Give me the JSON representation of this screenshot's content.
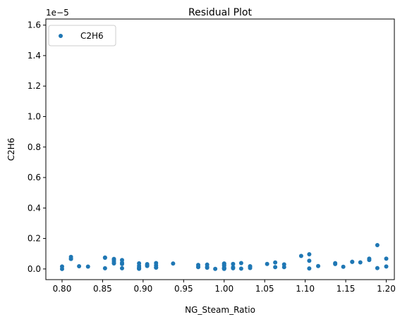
{
  "chart_data": {
    "type": "scatter",
    "title": "Residual Plot",
    "xlabel": "NG_Steam_Ratio",
    "ylabel": "C2H6",
    "y_offset_label": "1e−5",
    "xlim": [
      0.78,
      1.21
    ],
    "ylim": [
      -7e-07,
      1.64e-05
    ],
    "x_ticks": [
      0.8,
      0.85,
      0.9,
      0.95,
      1.0,
      1.05,
      1.1,
      1.15,
      1.2
    ],
    "x_tick_labels": [
      "0.80",
      "0.85",
      "0.90",
      "0.95",
      "1.00",
      "1.05",
      "1.10",
      "1.15",
      "1.20"
    ],
    "y_ticks": [
      0,
      2e-06,
      4e-06,
      6e-06,
      8e-06,
      1e-05,
      1.2e-05,
      1.4e-05,
      1.6e-05
    ],
    "y_tick_labels": [
      "0.0",
      "0.2",
      "0.4",
      "0.6",
      "0.8",
      "1.0",
      "1.2",
      "1.4",
      "1.6"
    ],
    "grid": false,
    "legend_position": "top-left",
    "series": [
      {
        "name": "C2H6",
        "color": "#1f77b4",
        "marker": "circle",
        "x": [
          0.8,
          0.8,
          0.811,
          0.811,
          0.811,
          0.821,
          0.832,
          0.853,
          0.853,
          0.853,
          0.864,
          0.864,
          0.864,
          0.864,
          0.864,
          0.874,
          0.874,
          0.874,
          0.874,
          0.895,
          0.895,
          0.895,
          0.895,
          0.895,
          0.895,
          0.905,
          0.905,
          0.905,
          0.916,
          0.916,
          0.916,
          0.916,
          0.937,
          0.968,
          0.968,
          0.968,
          0.979,
          0.979,
          0.979,
          0.989,
          1.0,
          1.0,
          1.0,
          1.0,
          1.0,
          1.0,
          1.0,
          1.0,
          1.0,
          1.011,
          1.011,
          1.011,
          1.021,
          1.021,
          1.032,
          1.032,
          1.032,
          1.053,
          1.063,
          1.063,
          1.074,
          1.074,
          1.095,
          1.105,
          1.105,
          1.105,
          1.116,
          1.137,
          1.137,
          1.147,
          1.158,
          1.158,
          1.168,
          1.179,
          1.179,
          1.189,
          1.189,
          1.2,
          1.2
        ],
        "y": [
          1.63e-07,
          0.0,
          7.9e-07,
          6.65e-07,
          6.6e-07,
          1.8e-07,
          1.53e-07,
          7.5e-07,
          7.35e-07,
          4.7e-08,
          6.6e-07,
          6.2e-07,
          5.15e-07,
          4e-07,
          3.65e-07,
          5.8e-07,
          4.05e-07,
          3.25e-07,
          4.5e-08,
          3.7e-07,
          2.05e-07,
          1.1e-07,
          3.5e-08,
          8e-09,
          3.5e-08,
          3.15e-07,
          2.4e-07,
          1.95e-07,
          3.85e-07,
          2.35e-07,
          1.05e-07,
          8.5e-08,
          3.55e-07,
          2.65e-07,
          1.35e-07,
          1.2e-07,
          2.85e-07,
          1.33e-07,
          8e-08,
          5e-09,
          3.55e-07,
          3.5e-07,
          2.65e-07,
          2.15e-07,
          7.5e-08,
          6.5e-08,
          4.5e-08,
          1.5e-08,
          3e-09,
          3.3e-07,
          1.1e-07,
          4.5e-08,
          3.85e-07,
          2e-08,
          1.8e-07,
          1.68e-07,
          6e-08,
          3.3e-07,
          4.25e-07,
          1.2e-07,
          2.97e-07,
          1.2e-07,
          8.55e-07,
          9.62e-07,
          5.35e-07,
          3.5e-08,
          1.87e-07,
          3.8e-07,
          3.2e-07,
          1.45e-07,
          4.7e-07,
          4.6e-07,
          4.33e-07,
          6.75e-07,
          5.9e-07,
          1.562e-06,
          5.5e-08,
          6.75e-07,
          1.63e-07
        ]
      }
    ]
  }
}
